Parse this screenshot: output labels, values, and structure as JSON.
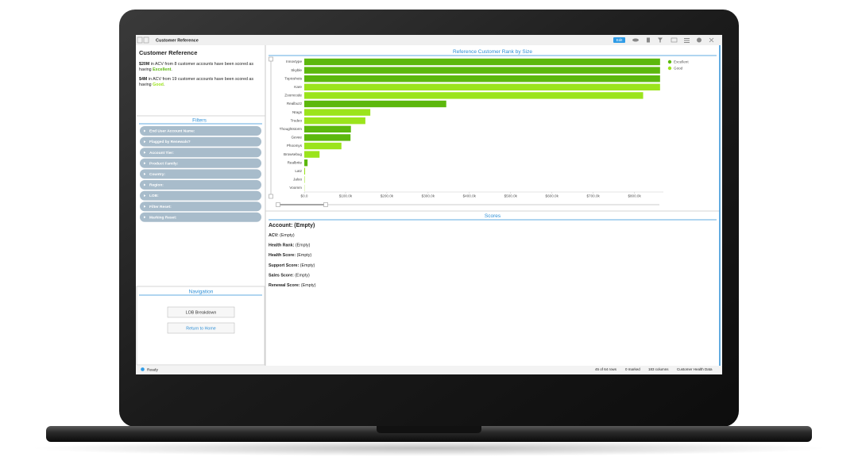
{
  "window": {
    "title": "Customer Reference",
    "edit_button": "Edit"
  },
  "summary": {
    "title": "Customer Reference",
    "lines": [
      {
        "amount": "$20M",
        "text": " in ACV from 8 customer accounts have been scored as",
        "prefix": "having ",
        "rating": "Excellent",
        "end": "."
      },
      {
        "amount": "$4M",
        "text": " in ACV from 19 customer accounts have been scored as",
        "prefix": "having ",
        "rating": "Good",
        "end": "."
      }
    ]
  },
  "filters": {
    "title": "Filters",
    "items": [
      "End User Account Name:",
      "Flagged by Renewals?",
      "Account Tier:",
      "Product Family:",
      "Country:",
      "Region:",
      "LOB:",
      "Filter Reset:",
      "Marking Reset:"
    ]
  },
  "navigation": {
    "title": "Navigation",
    "buttons": [
      "LOB Breakdown",
      "Return to Home"
    ]
  },
  "chart_data": {
    "type": "hbar",
    "title": "Reference Customer Rank by Size",
    "categories": [
      "Innovtype",
      "Skyble",
      "Topicshots",
      "Kare",
      "Zoomcode",
      "Realbuzz",
      "Ntags",
      "Trudeo",
      "Thoughtstorm",
      "Gevee",
      "Phoomys",
      "Browsebug",
      "Realbrite",
      "Latz",
      "Jaloo",
      "Voomm"
    ],
    "series": [
      {
        "name": "Excellent",
        "color": "#5cb80d",
        "values": [
          862000,
          862000,
          862000,
          null,
          null,
          344000,
          null,
          null,
          113000,
          112000,
          null,
          null,
          8000,
          null,
          null,
          null
        ]
      },
      {
        "name": "Good",
        "color": "#9be41c",
        "values": [
          null,
          null,
          null,
          862000,
          821000,
          null,
          160000,
          148000,
          null,
          null,
          90000,
          37000,
          null,
          2000,
          1000,
          500
        ]
      }
    ],
    "xlim": [
      0,
      870000
    ],
    "xticks": [
      {
        "value": 0,
        "label": "$0.0"
      },
      {
        "value": 100000,
        "label": "$100.0k"
      },
      {
        "value": 200000,
        "label": "$200.0k"
      },
      {
        "value": 300000,
        "label": "$300.0k"
      },
      {
        "value": 400000,
        "label": "$400.0k"
      },
      {
        "value": 500000,
        "label": "$500.0k"
      },
      {
        "value": 600000,
        "label": "$600.0k"
      },
      {
        "value": 700000,
        "label": "$700.0k"
      },
      {
        "value": 800000,
        "label": "$800.0k"
      }
    ],
    "grid": false,
    "legend": "top-right"
  },
  "scores": {
    "title": "Scores",
    "account": "Account: (Empty)",
    "fields": [
      {
        "label": "ACV:",
        "value": " (Empty)"
      },
      {
        "label": "Health Rank:",
        "value": " (Empty)"
      },
      {
        "label": "Health Score:",
        "value": " (Empty)"
      },
      {
        "label": "Support Score:",
        "value": " (Empty)"
      },
      {
        "label": "Sales Score:",
        "value": " (Empty)"
      },
      {
        "label": "Renewal Score:",
        "value": " (Empty)"
      }
    ]
  },
  "status": {
    "state": "Ready",
    "rows": "45 of 64 rows",
    "marked": "0 marked",
    "columns": "183 columns",
    "table": "Customer Health Data"
  }
}
